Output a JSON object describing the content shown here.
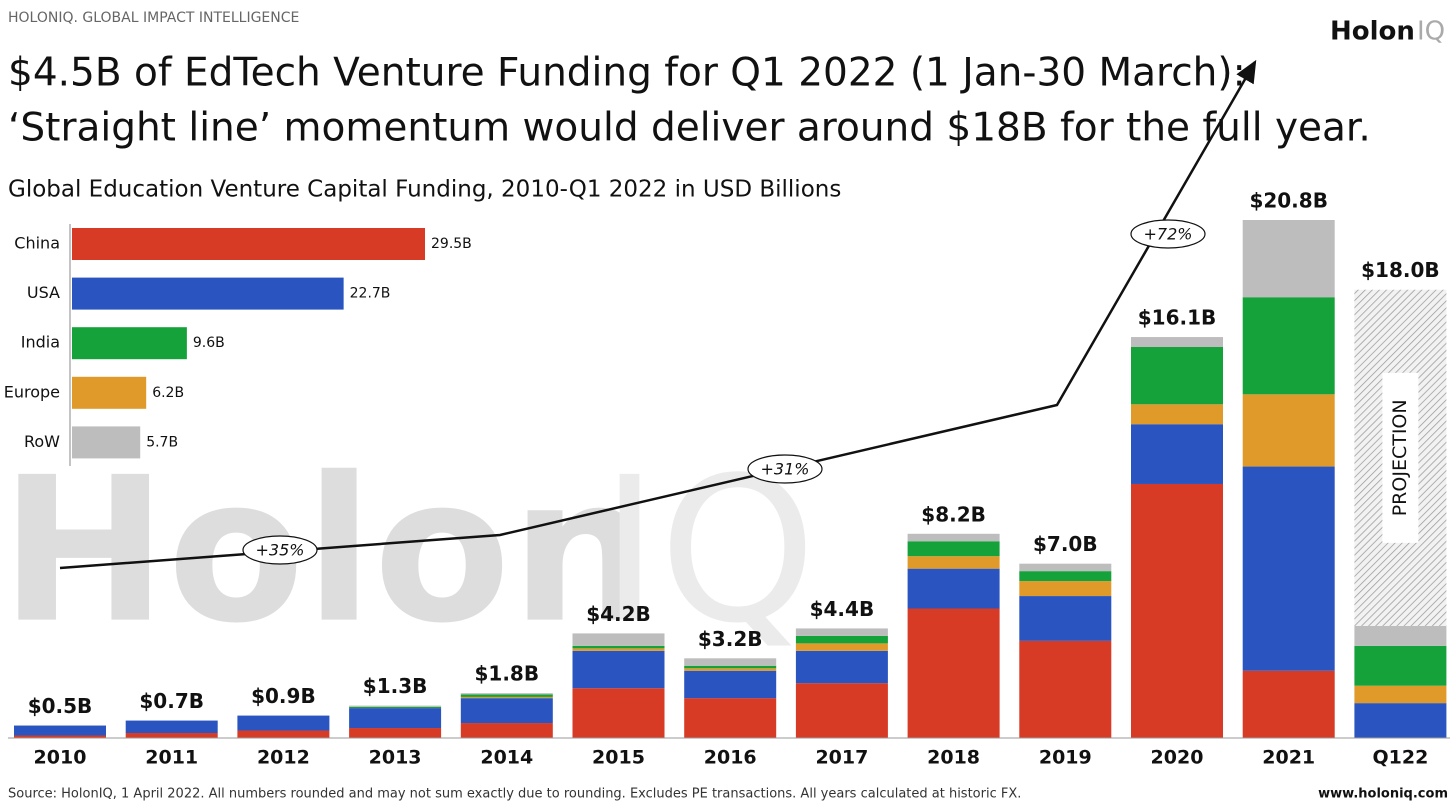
{
  "header": {
    "brand": "HOLONIQ. GLOBAL IMPACT INTELLIGENCE",
    "logo": {
      "name": "Holon",
      "suffix": "IQ"
    },
    "title": [
      "$4.5B of EdTech Venture Funding for Q1 2022 (1 Jan-30 March):",
      "‘Straight line’ momentum would deliver around $18B for the full year."
    ]
  },
  "footer": {
    "source": "Source: HolonIQ, 1 April 2022. All numbers rounded and may not sum exactly due to rounding. Excludes PE transactions. All years calculated at historic FX.",
    "url": "www.holoniq.com"
  },
  "chart_data": [
    {
      "type": "stacked_bar",
      "subtitle": "Global Education Venture Capital Funding, 2010-Q1 2022 in USD Billions",
      "categories": [
        "2010",
        "2011",
        "2012",
        "2013",
        "2014",
        "2015",
        "2016",
        "2017",
        "2018",
        "2019",
        "2020",
        "2021",
        "Q122"
      ],
      "series": [
        {
          "name": "China",
          "color": "#d73a25",
          "values": [
            0.1,
            0.2,
            0.3,
            0.4,
            0.6,
            2.0,
            1.6,
            2.2,
            5.2,
            3.9,
            10.2,
            2.7,
            0
          ]
        },
        {
          "name": "USA",
          "color": "#2a55c0",
          "values": [
            0.4,
            0.5,
            0.6,
            0.8,
            1.0,
            1.5,
            1.1,
            1.3,
            1.6,
            1.8,
            2.4,
            8.2,
            1.4
          ]
        },
        {
          "name": "Europe",
          "color": "#e09a2a",
          "values": [
            0,
            0,
            0,
            0,
            0.05,
            0.1,
            0.1,
            0.3,
            0.5,
            0.6,
            0.8,
            2.9,
            0.7
          ]
        },
        {
          "name": "India",
          "color": "#16a23a",
          "values": [
            0,
            0,
            0,
            0.05,
            0.1,
            0.1,
            0.1,
            0.3,
            0.6,
            0.4,
            2.3,
            3.9,
            1.6
          ]
        },
        {
          "name": "RoW",
          "color": "#bdbdbd",
          "values": [
            0,
            0,
            0,
            0.05,
            0.05,
            0.5,
            0.3,
            0.3,
            0.3,
            0.3,
            0.4,
            3.1,
            0.8
          ]
        }
      ],
      "totals": {
        "values": [
          0.5,
          0.7,
          0.9,
          1.3,
          1.8,
          4.2,
          3.2,
          4.4,
          8.2,
          7.0,
          16.1,
          20.8,
          18.0
        ],
        "value_labels": [
          "$0.5B",
          "$0.7B",
          "$0.9B",
          "$1.3B",
          "$1.8B",
          "$4.2B",
          "$3.2B",
          "$4.4B",
          "$8.2B",
          "$7.0B",
          "$16.1B",
          "$20.8B",
          "$18.0B"
        ]
      },
      "projection_label": "PROJECTION",
      "annotations": [
        "+35%",
        "+31%",
        "+72%"
      ]
    },
    {
      "type": "hbar",
      "categories": [
        "China",
        "USA",
        "India",
        "Europe",
        "RoW"
      ],
      "values": [
        29.5,
        22.7,
        9.6,
        6.2,
        5.7
      ],
      "value_labels": [
        "29.5B",
        "22.7B",
        "9.6B",
        "6.2B",
        "5.7B"
      ],
      "colors": [
        "#d73a25",
        "#2a55c0",
        "#16a23a",
        "#e09a2a",
        "#bdbdbd"
      ]
    }
  ]
}
